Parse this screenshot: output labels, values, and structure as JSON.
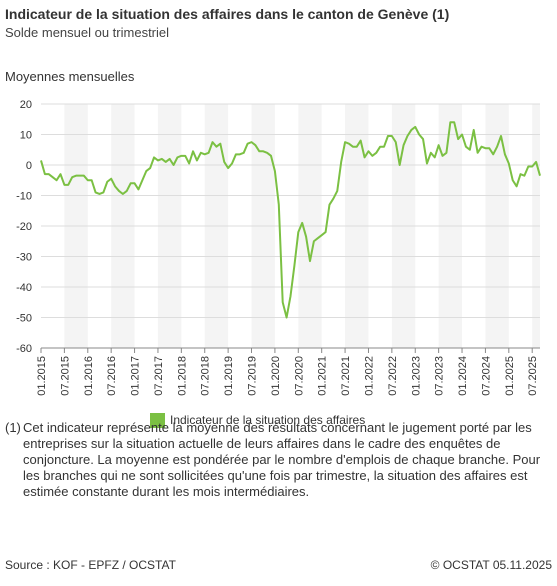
{
  "header": {
    "title": "Indicateur de la situation des affaires dans le canton de Genève (1)",
    "subtitle": "Solde mensuel ou trimestriel"
  },
  "panel_label": "Moyennes mensuelles",
  "colors": {
    "line": "#7bc043",
    "band": "#f4f4f4",
    "grid": "#dddddd",
    "axis": "#888888"
  },
  "chart_data": {
    "type": "line",
    "ylim": [
      -60,
      20
    ],
    "yticks": [
      20,
      10,
      0,
      -10,
      -20,
      -30,
      -40,
      -50,
      -60
    ],
    "x_start": "01.2015",
    "x_labels": [
      "01.2015",
      "07.2015",
      "01.2016",
      "07.2016",
      "01.2017",
      "07.2017",
      "01.2018",
      "07.2018",
      "01.2019",
      "07.2019",
      "01.2020",
      "07.2020",
      "01.2021",
      "07.2021",
      "01.2022",
      "07.2022",
      "01.2023",
      "07.2023",
      "01.2024",
      "07.2024",
      "01.2025",
      "07.2025"
    ],
    "grid": true,
    "legend": "bottom",
    "series": [
      {
        "name": "Indicateur de la situation des affaires",
        "values": [
          1.5,
          -3,
          -3,
          -4,
          -5,
          -3,
          -6.5,
          -6.5,
          -4,
          -3.5,
          -3.5,
          -3.5,
          -5,
          -5,
          -9,
          -9.5,
          -9,
          -5.5,
          -4.5,
          -7,
          -8.5,
          -9.5,
          -8.5,
          -6,
          -6,
          -8,
          -5,
          -2,
          -1,
          2.5,
          1.5,
          2,
          1,
          2,
          0,
          2.5,
          3,
          3,
          0.5,
          4.5,
          1.5,
          4,
          3.5,
          4,
          7.5,
          6,
          7,
          1,
          -1,
          0.5,
          3.5,
          3.5,
          4,
          7,
          7.5,
          6.5,
          4.5,
          4.5,
          4,
          3,
          -2,
          -13,
          -45,
          -50,
          -43,
          -33,
          -22,
          -19,
          -23.5,
          -31.5,
          -25,
          -24,
          -23,
          -22,
          -13,
          -11,
          -8.5,
          1,
          7.5,
          7,
          6,
          6,
          8,
          2.5,
          4.5,
          3,
          4,
          6,
          6,
          9.5,
          9.5,
          7.5,
          0,
          6.5,
          9.5,
          11.5,
          12.5,
          10,
          8.5,
          0.5,
          4,
          2.5,
          6.5,
          3,
          4,
          14,
          14,
          8.5,
          10,
          6,
          5,
          11.5,
          4,
          6,
          5.5,
          5.5,
          3.5,
          6,
          9.5,
          3.5,
          0.5,
          -5,
          -7,
          -3,
          -3.5,
          -0.5,
          -0.5,
          1,
          -3.5
        ]
      }
    ]
  },
  "footnote": {
    "number": "(1)",
    "text": "Cet indicateur représente la moyenne des résultats concernant le jugement porté par les entreprises sur la situation actuelle de leurs affaires dans le cadre des enquêtes de conjoncture. La moyenne est pondérée par le nombre d'emplois de chaque branche. Pour les branches qui ne sont sollicitées qu'une fois par trimestre, la situation des affaires est estimée constante durant les mois intermédiaires."
  },
  "footer": {
    "source": "Source : KOF - EPFZ / OCSTAT",
    "copyright": "© OCSTAT 05.11.2025"
  }
}
